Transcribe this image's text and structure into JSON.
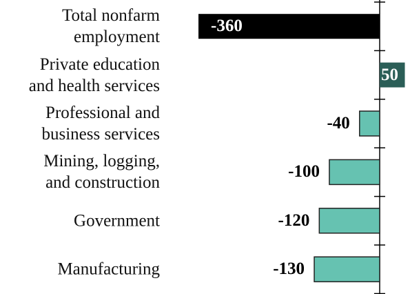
{
  "chart_data": {
    "type": "bar",
    "orientation": "horizontal",
    "categories": [
      "Total nonfarm\nemployment",
      "Private education\nand health services",
      "Professional and\nbusiness services",
      "Mining, logging,\nand construction",
      "Government",
      "Manufacturing"
    ],
    "values": [
      -360,
      50,
      -40,
      -100,
      -120,
      -130
    ],
    "colors": [
      "#000000",
      "#2b5e57",
      "#66c2b1",
      "#66c2b1",
      "#66c2b1",
      "#66c2b1"
    ]
  }
}
